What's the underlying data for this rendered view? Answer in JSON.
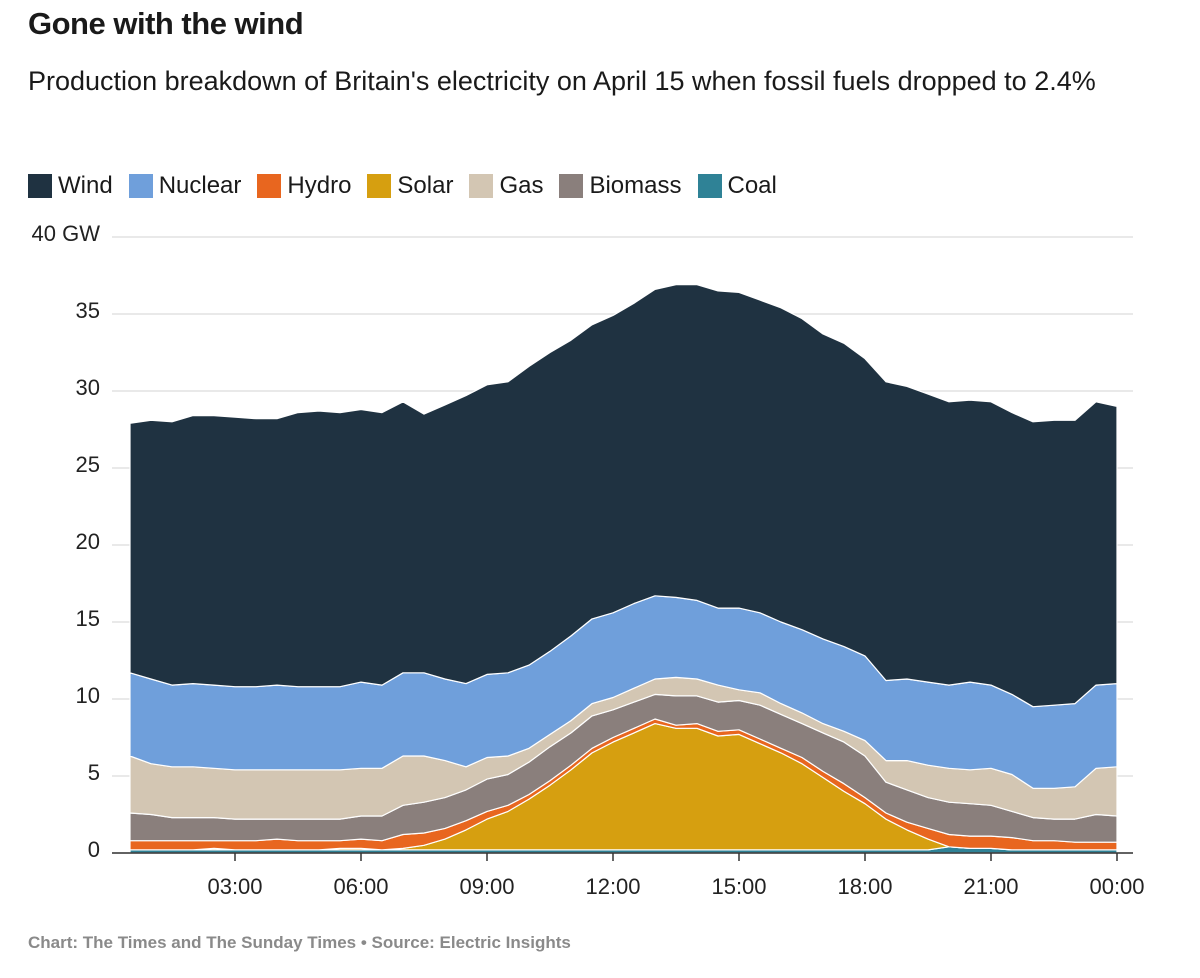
{
  "chart_data": {
    "type": "stacked_area",
    "title": "Gone with the wind",
    "subtitle": "Production breakdown of Britain's electricity on April 15 when fossil fuels dropped to 2.4%",
    "source": "Chart: The Times and The Sunday Times • Source: Electric Insights",
    "x": [
      0.5,
      1,
      1.5,
      2,
      2.5,
      3,
      3.5,
      4,
      4.5,
      5,
      5.5,
      6,
      6.5,
      7,
      7.5,
      8,
      8.5,
      9,
      9.5,
      10,
      10.5,
      11,
      11.5,
      12,
      12.5,
      13,
      13.5,
      14,
      14.5,
      15,
      15.5,
      16,
      16.5,
      17,
      17.5,
      18,
      18.5,
      19,
      19.5,
      20,
      20.5,
      21,
      21.5,
      22,
      22.5,
      23,
      23.5,
      24
    ],
    "xlim": [
      0.5,
      24
    ],
    "xticks": [
      {
        "value": 3,
        "label": "03:00"
      },
      {
        "value": 6,
        "label": "06:00"
      },
      {
        "value": 9,
        "label": "09:00"
      },
      {
        "value": 12,
        "label": "12:00"
      },
      {
        "value": 15,
        "label": "15:00"
      },
      {
        "value": 18,
        "label": "18:00"
      },
      {
        "value": 21,
        "label": "21:00"
      },
      {
        "value": 24,
        "label": "00:00"
      }
    ],
    "ylim": [
      0,
      40
    ],
    "yticks": [
      0,
      5,
      10,
      15,
      20,
      25,
      30,
      35,
      {
        "value": 40,
        "label": "40 GW"
      }
    ],
    "grid": true,
    "stack_order": [
      6,
      3,
      2,
      5,
      4,
      1,
      0
    ],
    "series": [
      {
        "name": "Wind",
        "color": "#1f3241",
        "values": [
          16.2,
          16.8,
          17.1,
          17.4,
          17.5,
          17.5,
          17.4,
          17.3,
          17.8,
          17.9,
          17.8,
          17.7,
          17.7,
          17.6,
          16.8,
          17.8,
          18.7,
          18.8,
          18.9,
          19.4,
          19.4,
          19.2,
          19.1,
          19.3,
          19.5,
          19.9,
          20.3,
          20.5,
          20.6,
          20.5,
          20.3,
          20.4,
          20.2,
          19.8,
          19.7,
          19.3,
          19.4,
          19.0,
          18.7,
          18.4,
          18.3,
          18.4,
          18.3,
          18.5,
          18.5,
          18.4,
          18.4,
          18.0
        ]
      },
      {
        "name": "Nuclear",
        "color": "#6f9fdb",
        "values": [
          5.4,
          5.5,
          5.3,
          5.4,
          5.4,
          5.4,
          5.4,
          5.5,
          5.4,
          5.4,
          5.4,
          5.6,
          5.4,
          5.4,
          5.4,
          5.3,
          5.4,
          5.4,
          5.4,
          5.4,
          5.4,
          5.5,
          5.5,
          5.5,
          5.5,
          5.4,
          5.2,
          5.1,
          5.0,
          5.3,
          5.2,
          5.3,
          5.4,
          5.5,
          5.5,
          5.5,
          5.2,
          5.3,
          5.4,
          5.4,
          5.7,
          5.4,
          5.2,
          5.3,
          5.4,
          5.4,
          5.4,
          5.4
        ]
      },
      {
        "name": "Hydro",
        "color": "#e8661f",
        "values": [
          0.6,
          0.6,
          0.6,
          0.6,
          0.5,
          0.6,
          0.6,
          0.7,
          0.6,
          0.6,
          0.5,
          0.6,
          0.6,
          0.9,
          0.8,
          0.7,
          0.6,
          0.5,
          0.4,
          0.3,
          0.3,
          0.3,
          0.3,
          0.3,
          0.3,
          0.3,
          0.2,
          0.3,
          0.3,
          0.3,
          0.3,
          0.3,
          0.4,
          0.4,
          0.5,
          0.4,
          0.4,
          0.5,
          0.7,
          0.8,
          0.8,
          0.8,
          0.8,
          0.6,
          0.6,
          0.5,
          0.5,
          0.5
        ]
      },
      {
        "name": "Solar",
        "color": "#d69f10",
        "values": [
          0,
          0,
          0,
          0,
          0.1,
          0,
          0,
          0,
          0,
          0,
          0.1,
          0.1,
          0,
          0.1,
          0.3,
          0.7,
          1.3,
          2.0,
          2.5,
          3.3,
          4.2,
          5.2,
          6.3,
          7.0,
          7.6,
          8.2,
          7.9,
          7.9,
          7.4,
          7.5,
          6.9,
          6.3,
          5.6,
          4.7,
          3.8,
          3.0,
          2.0,
          1.3,
          0.7,
          0,
          0,
          0,
          0,
          0,
          0,
          0,
          0,
          0
        ]
      },
      {
        "name": "Gas",
        "color": "#d3c6b3",
        "values": [
          3.7,
          3.3,
          3.3,
          3.3,
          3.2,
          3.2,
          3.2,
          3.2,
          3.2,
          3.2,
          3.2,
          3.1,
          3.1,
          3.2,
          3.0,
          2.4,
          1.5,
          1.4,
          1.2,
          0.9,
          0.8,
          0.8,
          0.8,
          0.8,
          0.9,
          1.0,
          1.2,
          1.1,
          1.1,
          0.7,
          0.8,
          0.7,
          0.7,
          0.6,
          0.7,
          1.0,
          1.4,
          1.9,
          2.1,
          2.2,
          2.2,
          2.4,
          2.4,
          1.9,
          2.0,
          2.1,
          3.0,
          3.2
        ]
      },
      {
        "name": "Biomass",
        "color": "#8a7f7c",
        "values": [
          1.8,
          1.7,
          1.5,
          1.5,
          1.5,
          1.4,
          1.4,
          1.3,
          1.4,
          1.4,
          1.4,
          1.5,
          1.6,
          1.9,
          2.0,
          2.0,
          2.0,
          2.1,
          2.0,
          2.1,
          2.2,
          2.1,
          2.1,
          1.8,
          1.7,
          1.6,
          1.9,
          1.8,
          1.9,
          1.9,
          2.2,
          2.2,
          2.2,
          2.5,
          2.7,
          2.7,
          2.0,
          2.1,
          2.0,
          2.1,
          2.1,
          2.0,
          1.7,
          1.5,
          1.4,
          1.5,
          1.8,
          1.7
        ]
      },
      {
        "name": "Coal",
        "color": "#2f8296",
        "values": [
          0.2,
          0.2,
          0.2,
          0.2,
          0.2,
          0.2,
          0.2,
          0.2,
          0.2,
          0.2,
          0.2,
          0.2,
          0.2,
          0.2,
          0.2,
          0.2,
          0.2,
          0.2,
          0.2,
          0.2,
          0.2,
          0.2,
          0.2,
          0.2,
          0.2,
          0.2,
          0.2,
          0.2,
          0.2,
          0.2,
          0.2,
          0.2,
          0.2,
          0.2,
          0.2,
          0.2,
          0.2,
          0.2,
          0.2,
          0.4,
          0.3,
          0.3,
          0.2,
          0.2,
          0.2,
          0.2,
          0.2,
          0.2
        ]
      }
    ]
  }
}
